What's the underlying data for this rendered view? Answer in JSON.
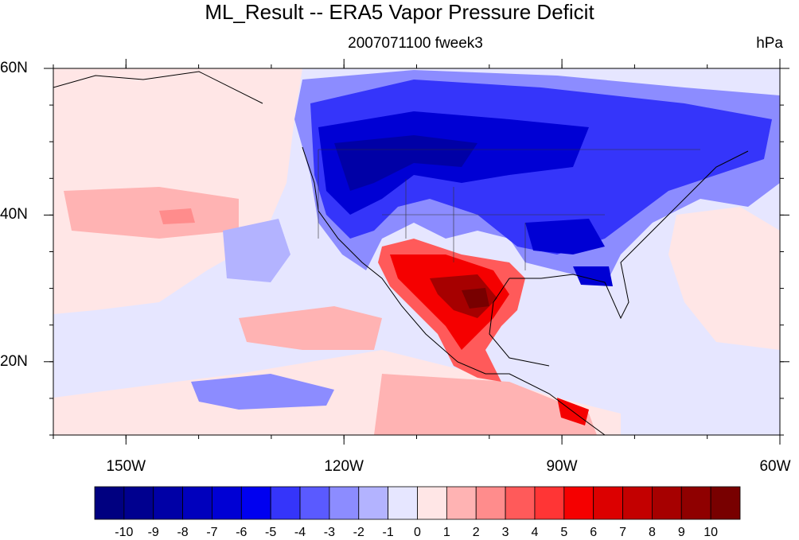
{
  "title": "ML_Result -- ERA5 Vapor Pressure Deficit",
  "subtitle": "2007071100 fweek3",
  "units": "hPa",
  "map": {
    "lon_range": [
      -160,
      -60
    ],
    "lat_range": [
      10,
      60
    ],
    "lon_ticks": [
      {
        "value": -150,
        "label": "150W"
      },
      {
        "value": -120,
        "label": "120W"
      },
      {
        "value": -90,
        "label": "90W"
      },
      {
        "value": -60,
        "label": "60W"
      }
    ],
    "lat_ticks": [
      {
        "value": 60,
        "label": "60N"
      },
      {
        "value": 40,
        "label": "40N"
      },
      {
        "value": 20,
        "label": "20N"
      }
    ]
  },
  "colorbar": {
    "labels": [
      "-10",
      "-9",
      "-8",
      "-7",
      "-6",
      "-5",
      "-4",
      "-3",
      "-2",
      "-1",
      "0",
      "1",
      "2",
      "3",
      "4",
      "5",
      "6",
      "7",
      "8",
      "9",
      "10"
    ],
    "colors": [
      "#000080",
      "#00008f",
      "#0000a6",
      "#0000bd",
      "#0000d4",
      "#0000f0",
      "#3535fa",
      "#5a5aff",
      "#8c8cff",
      "#b3b3ff",
      "#e6e6ff",
      "#ffe6e6",
      "#ffb3b3",
      "#ff8c8c",
      "#ff5a5a",
      "#ff3535",
      "#f50000",
      "#dc0000",
      "#c30000",
      "#a60000",
      "#8f0000",
      "#780000"
    ]
  }
}
